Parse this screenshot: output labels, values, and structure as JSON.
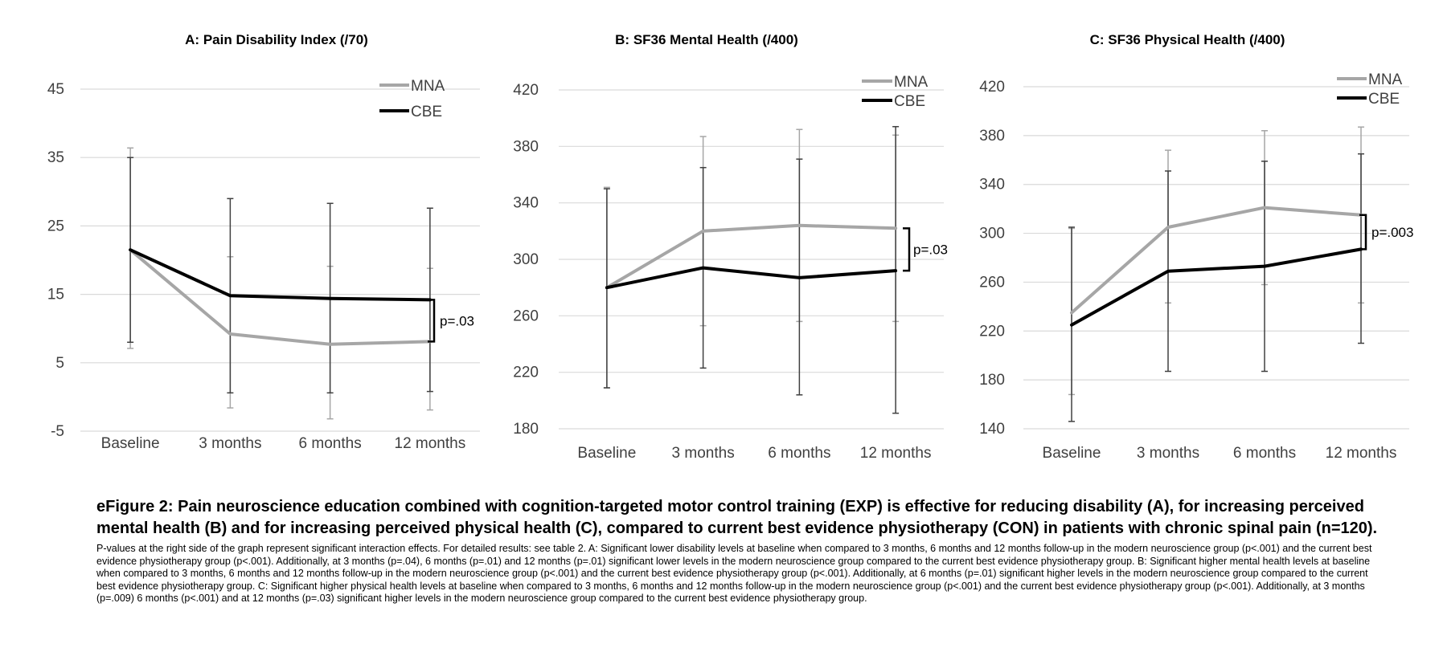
{
  "colors": {
    "MNA": "#a6a6a6",
    "CBE": "#000000",
    "grid": "#d9d9d9",
    "error": "#404040"
  },
  "chart_data": [
    {
      "type": "line",
      "title": "A: Pain Disability Index (/70)",
      "categories": [
        "Baseline",
        "3 months",
        "6 months",
        "12 months"
      ],
      "ylim": [
        -5,
        45
      ],
      "yticks": [
        -5,
        5,
        15,
        25,
        35,
        45
      ],
      "grid": true,
      "legend_position": "top-right",
      "series": [
        {
          "name": "MNA",
          "values": [
            21.5,
            9.2,
            7.7,
            8.1
          ],
          "error_low": [
            7.1,
            -1.6,
            -3.2,
            -1.9
          ],
          "error_high": [
            36.4,
            20.5,
            19.1,
            18.8
          ]
        },
        {
          "name": "CBE",
          "values": [
            21.5,
            14.8,
            14.4,
            14.2
          ],
          "error_low": [
            8.0,
            0.6,
            0.6,
            0.8
          ],
          "error_high": [
            35.0,
            29.0,
            28.3,
            27.6
          ]
        }
      ],
      "annotation": "p=.03"
    },
    {
      "type": "line",
      "title": "B: SF36 Mental Health (/400)",
      "categories": [
        "Baseline",
        "3 months",
        "6 months",
        "12 months"
      ],
      "ylim": [
        180,
        420
      ],
      "yticks": [
        180,
        220,
        260,
        300,
        340,
        380,
        420
      ],
      "grid": true,
      "legend_position": "top-right",
      "series": [
        {
          "name": "MNA",
          "values": [
            280,
            320,
            324,
            322
          ],
          "error_low": [
            209,
            253,
            256,
            256
          ],
          "error_high": [
            351,
            387,
            392,
            388
          ]
        },
        {
          "name": "CBE",
          "values": [
            280,
            294,
            287,
            292
          ],
          "error_low": [
            209,
            223,
            204,
            191
          ],
          "error_high": [
            350,
            365,
            371,
            394
          ]
        }
      ],
      "annotation": "p=.03"
    },
    {
      "type": "line",
      "title": "C: SF36 Physical Health (/400)",
      "categories": [
        "Baseline",
        "3 months",
        "6 months",
        "12 months"
      ],
      "ylim": [
        140,
        420
      ],
      "yticks": [
        140,
        180,
        220,
        260,
        300,
        340,
        380,
        420
      ],
      "grid": true,
      "legend_position": "top-right",
      "series": [
        {
          "name": "MNA",
          "values": [
            235,
            305,
            321,
            315
          ],
          "error_low": [
            168,
            243,
            258,
            243
          ],
          "error_high": [
            304,
            368,
            384,
            387
          ]
        },
        {
          "name": "CBE",
          "values": [
            225,
            269,
            273,
            287
          ],
          "error_low": [
            146,
            187,
            187,
            210
          ],
          "error_high": [
            305,
            351,
            359,
            365
          ]
        }
      ],
      "annotation": "p=.003"
    }
  ],
  "caption": {
    "title": "eFigure 2: Pain neuroscience education combined with cognition-targeted motor control training (EXP) is effective for reducing disability (A), for increasing perceived mental health (B) and for increasing perceived physical health (C), compared to current best evidence physiotherapy (CON) in patients with chronic spinal pain (n=120).",
    "body": "P-values at the right side of the graph represent significant interaction effects. For detailed results: see table 2. A: Significant lower disability levels at baseline when compared to 3 months, 6 months and 12 months follow-up in the modern neuroscience group (p<.001) and the current best evidence physiotherapy group (p<.001). Additionally, at 3 months (p=.04), 6 months (p=.01) and 12 months (p=.01) significant lower levels in the modern neuroscience group compared to the current best evidence physiotherapy group. B: Significant higher mental health levels at baseline when compared to 3 months, 6 months and 12 months follow-up in the modern neuroscience group (p<.001) and the current best evidence physiotherapy group (p<.001). Additionally, at 6 months (p=.01) significant higher levels in the modern neuroscience group compared to the current best evidence physiotherapy group. C: Significant higher physical health levels at baseline when compared to 3 months, 6 months and 12 months follow-up in the modern neuroscience group (p<.001) and the current best evidence physiotherapy group (p<.001). Additionally, at 3 months (p=.009) 6 months (p<.001) and at 12 months (p=.03) significant higher levels in the modern neuroscience group compared to the current best evidence physiotherapy group."
  }
}
